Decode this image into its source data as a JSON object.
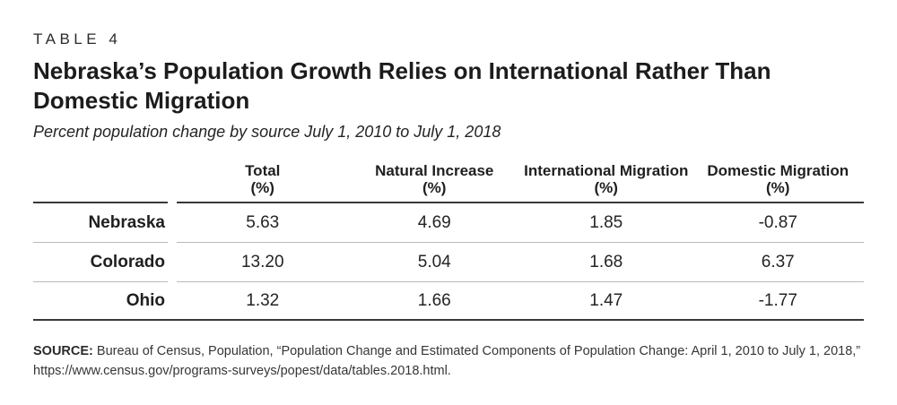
{
  "colors": {
    "background": "#ffffff",
    "text": "#1f1f1f",
    "dark_rule": "#393939",
    "light_rule": "#b9b9b9"
  },
  "header": {
    "kicker": "TABLE 4",
    "title": "Nebraska’s Population Growth Relies on International Rather Than\nDomestic Migration",
    "subtitle": "Percent population change by source July 1, 2010 to July 1, 2018"
  },
  "chart_data": {
    "type": "table",
    "title": "Nebraska’s Population Growth Relies on International Rather Than Domestic Migration",
    "subtitle": "Percent population change by source July 1, 2010 to July 1, 2018",
    "columns": [
      {
        "label": "Total",
        "unit": "(%)"
      },
      {
        "label": "Natural Increase",
        "unit": "(%)"
      },
      {
        "label": "International Migration",
        "unit": "(%)"
      },
      {
        "label": "Domestic Migration",
        "unit": "(%)"
      }
    ],
    "rows": [
      {
        "label": "Nebraska",
        "values": [
          "5.63",
          "4.69",
          "1.85",
          "-0.87"
        ]
      },
      {
        "label": "Colorado",
        "values": [
          "13.20",
          "5.04",
          "1.68",
          "6.37"
        ]
      },
      {
        "label": "Ohio",
        "values": [
          "1.32",
          "1.66",
          "1.47",
          "-1.77"
        ]
      }
    ]
  },
  "source": {
    "label": "SOURCE:",
    "text": " Bureau of Census, Population, “Population Change and Estimated Components of Population Change: April 1, 2010 to July 1, 2018,”\nhttps://www.census.gov/programs-surveys/popest/data/tables.2018.html."
  }
}
